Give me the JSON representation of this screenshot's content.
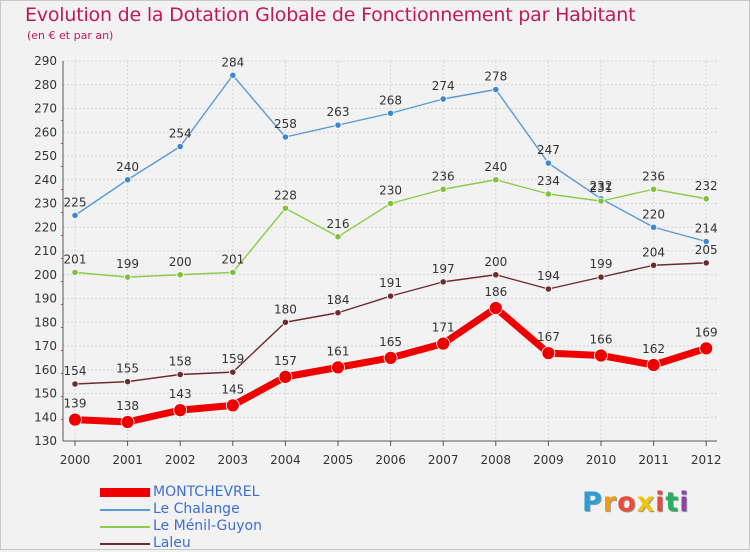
{
  "chart_data": {
    "type": "line",
    "title": "Evolution de la Dotation Globale de Fonctionnement par Habitant",
    "subtitle": "(en € et par an)",
    "xlabel": "",
    "ylabel": "",
    "categories": [
      "2000",
      "2001",
      "2002",
      "2003",
      "2004",
      "2005",
      "2006",
      "2007",
      "2008",
      "2009",
      "2010",
      "2011",
      "2012"
    ],
    "ylim": [
      130,
      290
    ],
    "yticks": [
      130,
      140,
      150,
      160,
      170,
      180,
      190,
      200,
      210,
      220,
      230,
      240,
      250,
      260,
      270,
      280,
      290
    ],
    "grid": true,
    "legend_position": "bottom-left",
    "series": [
      {
        "name": "Le Chalange",
        "color": "#5b9bd5",
        "values": [
          225,
          240,
          254,
          284,
          258,
          263,
          268,
          274,
          278,
          247,
          232,
          220,
          214
        ]
      },
      {
        "name": "Le Ménil-Guyon",
        "color": "#8ccc4a",
        "values": [
          201,
          199,
          200,
          201,
          228,
          216,
          230,
          236,
          240,
          234,
          231,
          236,
          232
        ]
      },
      {
        "name": "Laleu",
        "color": "#6d2b2b",
        "values": [
          154,
          155,
          158,
          159,
          180,
          184,
          191,
          197,
          200,
          194,
          199,
          204,
          205
        ]
      },
      {
        "name": "MONTCHEVREL",
        "color": "#ee0000",
        "values": [
          139,
          138,
          143,
          145,
          157,
          161,
          165,
          171,
          186,
          167,
          166,
          162,
          169
        ]
      }
    ]
  },
  "legend": [
    {
      "name": "MONTCHEVREL",
      "color": "#ee0000",
      "text_color": "#3d6fd1"
    },
    {
      "name": "Le Chalange",
      "color": "#5b9bd5",
      "text_color": "#3d6fd1"
    },
    {
      "name": "Le Ménil-Guyon",
      "color": "#8ccc4a",
      "text_color": "#3d6fd1"
    },
    {
      "name": "Laleu",
      "color": "#6d2b2b",
      "text_color": "#3d6fd1"
    }
  ],
  "logo": {
    "letters": [
      "P",
      "r",
      "o",
      "x",
      "i",
      "t",
      "i"
    ],
    "colors": [
      "#2a9fd6",
      "#f39c12",
      "#e74c3c",
      "#f1c40f",
      "#e74c3c",
      "#27ae60",
      "#8e44ad"
    ]
  }
}
